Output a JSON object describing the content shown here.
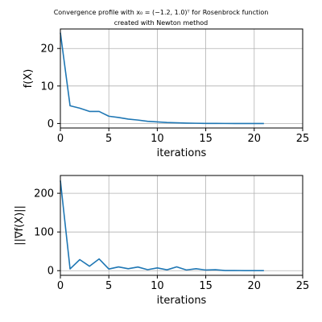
{
  "title_lines": [
    "Convergence profile with x₀ = (−1.2, 1.0)ᵀ for Rosenbrock function",
    "created with Newton method"
  ],
  "colors": {
    "series": "#1f77b4",
    "grid": "#b0b0b0",
    "axes": "#000000",
    "background": "#ffffff"
  },
  "chart_data": [
    {
      "type": "line",
      "xlabel": "iterations",
      "ylabel": "f(X)",
      "xlim": [
        0,
        25
      ],
      "ylim": [
        -1.2,
        25.2
      ],
      "xticks": [
        0,
        5,
        10,
        15,
        20,
        25
      ],
      "yticks": [
        0,
        10,
        20
      ],
      "grid": true,
      "x": [
        0,
        1,
        2,
        3,
        4,
        5,
        6,
        7,
        8,
        9,
        10,
        11,
        12,
        13,
        14,
        15,
        16,
        17,
        18,
        19,
        20,
        21
      ],
      "y": [
        24.2,
        4.73,
        4.09,
        3.22,
        3.21,
        1.94,
        1.6,
        1.18,
        0.92,
        0.58,
        0.42,
        0.27,
        0.18,
        0.1,
        0.06,
        0.03,
        0.015,
        0.006,
        0.002,
        0.0005,
        0.0001,
        0.0
      ]
    },
    {
      "type": "line",
      "xlabel": "iterations",
      "ylabel": "||∇f(X)||",
      "xlim": [
        0,
        25
      ],
      "ylim": [
        -12,
        246
      ],
      "xticks": [
        0,
        5,
        10,
        15,
        20,
        25
      ],
      "yticks": [
        0,
        100,
        200
      ],
      "grid": true,
      "x": [
        0,
        1,
        2,
        3,
        4,
        5,
        6,
        7,
        8,
        9,
        10,
        11,
        12,
        13,
        14,
        15,
        16,
        17,
        18,
        19,
        20,
        21
      ],
      "y": [
        232.9,
        4.6,
        28.6,
        11.5,
        30.3,
        4.2,
        9.7,
        5.1,
        9.5,
        2.6,
        7.1,
        2.2,
        9.8,
        1.8,
        5.0,
        1.6,
        2.5,
        0.4,
        0.5,
        0.05,
        0.01,
        0.0
      ]
    }
  ]
}
